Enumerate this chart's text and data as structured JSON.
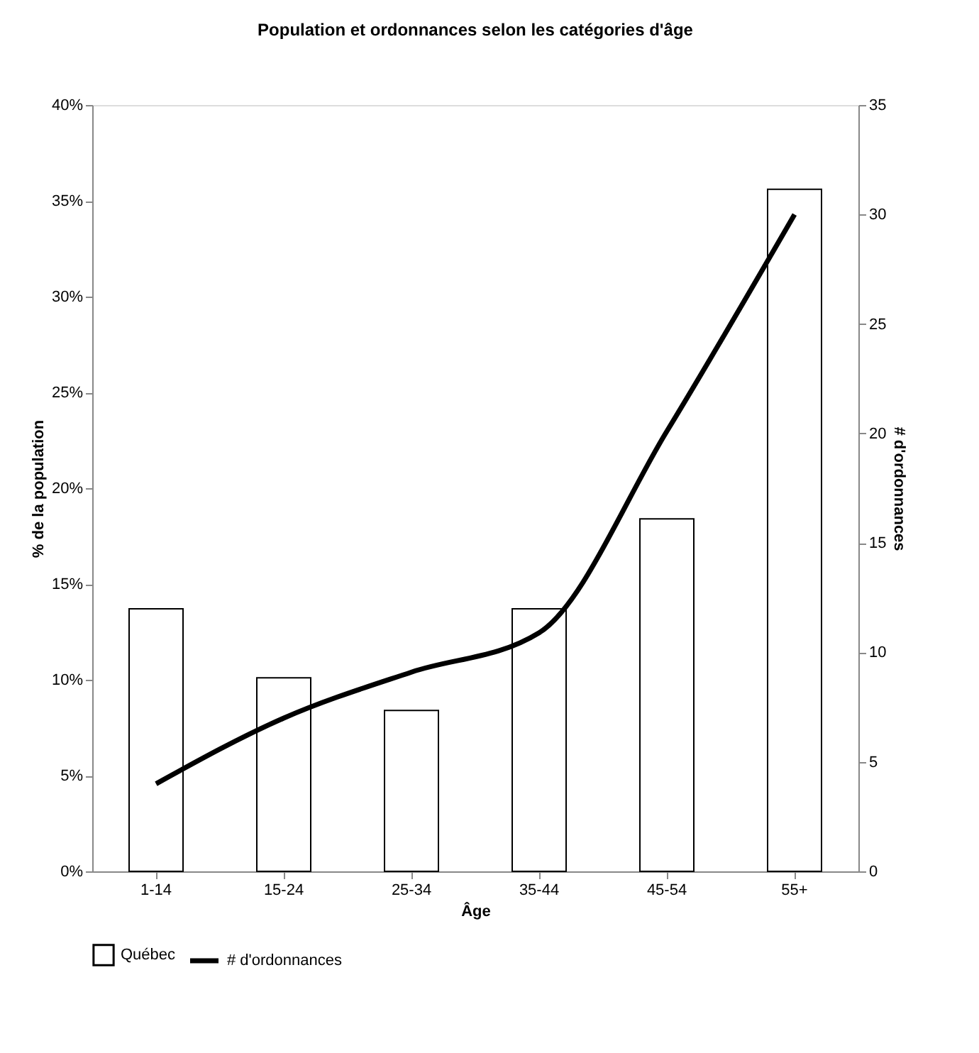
{
  "chart_data": {
    "type": "bar",
    "title": "Population et ordonnances selon les catégories d'âge",
    "xlabel": "Âge",
    "ylabel": "% de la population",
    "y2label": "# d'ordonnances",
    "categories": [
      "1-14",
      "15-24",
      "25-34",
      "35-44",
      "45-54",
      "55+"
    ],
    "series": [
      {
        "name": "Québec",
        "color": "#ffffff",
        "values": [
          13.7,
          10.1,
          8.4,
          13.7,
          18.4,
          35.6
        ]
      },
      {
        "name": "# d'ordonnances",
        "type": "line",
        "axis": "y2",
        "color": "#000000",
        "values": [
          4.0,
          7.0,
          9.1,
          10.9,
          20.1,
          30.0
        ]
      }
    ],
    "ylim": [
      0,
      40
    ],
    "yticks": [
      {
        "value": 0,
        "label": "0%"
      },
      {
        "value": 5,
        "label": "5%"
      },
      {
        "value": 10,
        "label": "10%"
      },
      {
        "value": 15,
        "label": "15%"
      },
      {
        "value": 20,
        "label": "20%"
      },
      {
        "value": 25,
        "label": "25%"
      },
      {
        "value": 30,
        "label": "30%"
      },
      {
        "value": 35,
        "label": "35%"
      },
      {
        "value": 40,
        "label": "40%"
      }
    ],
    "y2lim": [
      0,
      35
    ],
    "y2ticks": [
      0,
      5,
      10,
      15,
      20,
      25,
      30,
      35
    ],
    "grid": false,
    "legend": "bottom",
    "marker": "none",
    "line_style": "solid"
  }
}
